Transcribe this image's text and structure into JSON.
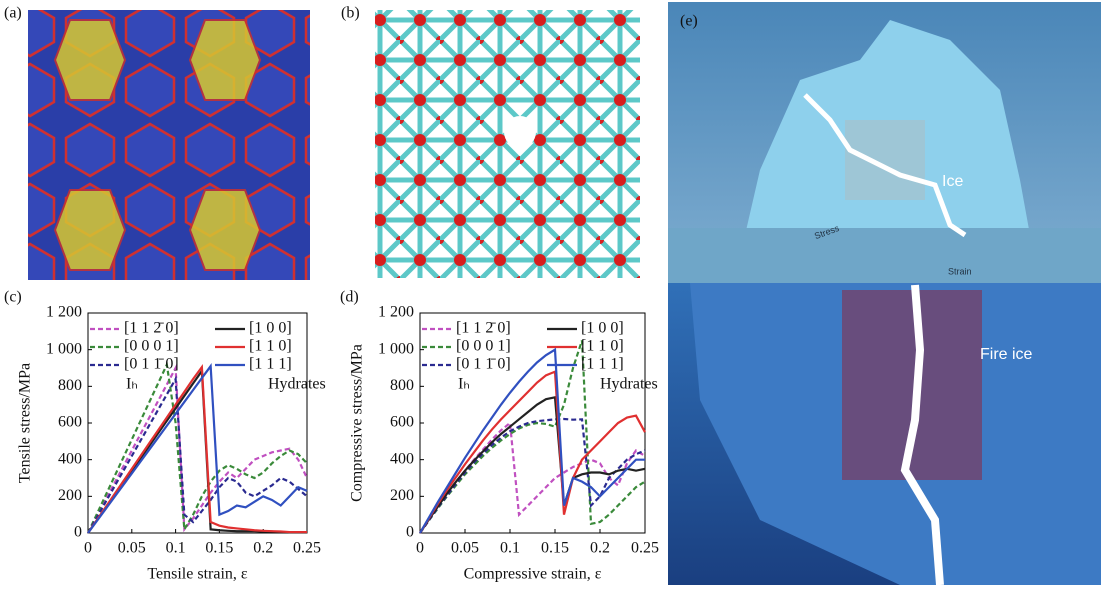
{
  "panels": {
    "a": "(a)",
    "b": "(b)",
    "e": "(e)"
  },
  "illustration": {
    "ice": "Ice",
    "fire_ice": "Fire ice",
    "stress": "Stress",
    "strain": "Strain"
  },
  "chart_data": [
    {
      "type": "line",
      "panel_label": "(c)",
      "ylabel": "Tensile stress/MPa",
      "xlabel": "Tensile strain, ε",
      "annotations": [
        "Iₕ",
        "Hydrates"
      ],
      "xlim": [
        0,
        0.25
      ],
      "xticks": [
        0,
        0.05,
        0.1,
        0.15,
        0.2,
        0.25
      ],
      "ylim": [
        0,
        1200
      ],
      "yticks": [
        0,
        200,
        400,
        600,
        800,
        {
          "value": 1000,
          "label": "1 000"
        },
        {
          "value": 1200,
          "label": "1 200"
        }
      ],
      "x": [
        0,
        0.01,
        0.02,
        0.03,
        0.04,
        0.05,
        0.06,
        0.07,
        0.08,
        0.09,
        0.1,
        0.11,
        0.12,
        0.13,
        0.14,
        0.15,
        0.16,
        0.17,
        0.18,
        0.19,
        0.2,
        0.21,
        0.22,
        0.23,
        0.24,
        0.25
      ],
      "series": [
        {
          "name": "[1 1 2̄ 0]",
          "color": "#c050c0",
          "style": "dashed",
          "values": [
            0,
            90,
            180,
            270,
            360,
            450,
            540,
            630,
            720,
            810,
            900,
            20,
            80,
            150,
            220,
            280,
            330,
            300,
            350,
            400,
            420,
            440,
            450,
            460,
            400,
            300
          ]
        },
        {
          "name": "[0 0 0 1]",
          "color": "#3a8a3a",
          "style": "dashed",
          "values": [
            0,
            102,
            204,
            306,
            408,
            510,
            612,
            714,
            816,
            918,
            600,
            20,
            100,
            200,
            280,
            340,
            370,
            350,
            320,
            300,
            330,
            380,
            420,
            450,
            430,
            380
          ]
        },
        {
          "name": "[0 1 1̄ 0]",
          "color": "#2a2a90",
          "style": "dashed",
          "values": [
            0,
            84,
            168,
            252,
            336,
            420,
            504,
            588,
            672,
            756,
            840,
            100,
            60,
            120,
            180,
            250,
            300,
            280,
            220,
            200,
            230,
            260,
            300,
            280,
            240,
            200
          ]
        },
        {
          "name": "[1 0 0]",
          "color": "#222222",
          "style": "solid",
          "values": [
            0,
            68,
            136,
            204,
            272,
            340,
            408,
            476,
            544,
            612,
            680,
            748,
            816,
            884,
            20,
            15,
            12,
            10,
            10,
            10,
            8,
            8,
            5,
            5,
            5,
            5
          ]
        },
        {
          "name": "[1 1 0]",
          "color": "#e03030",
          "style": "solid",
          "values": [
            0,
            70,
            140,
            210,
            280,
            350,
            420,
            490,
            560,
            630,
            700,
            770,
            840,
            905,
            60,
            40,
            30,
            25,
            20,
            15,
            12,
            10,
            8,
            5,
            5,
            5
          ]
        },
        {
          "name": "[1 1 1]",
          "color": "#3050c0",
          "style": "solid",
          "values": [
            0,
            65,
            130,
            195,
            260,
            325,
            390,
            455,
            520,
            585,
            650,
            715,
            780,
            845,
            910,
            100,
            120,
            150,
            140,
            170,
            200,
            180,
            150,
            200,
            250,
            230
          ]
        }
      ]
    },
    {
      "type": "line",
      "panel_label": "(d)",
      "ylabel": "Compressive stress/MPa",
      "xlabel": "Compressive strain, ε",
      "annotations": [
        "Iₕ",
        "Hydrates"
      ],
      "xlim": [
        0,
        0.25
      ],
      "xticks": [
        0,
        0.05,
        0.1,
        0.15,
        0.2,
        0.25
      ],
      "ylim": [
        0,
        1200
      ],
      "yticks": [
        0,
        200,
        400,
        600,
        800,
        {
          "value": 1000,
          "label": "1 000"
        },
        {
          "value": 1200,
          "label": "1 200"
        }
      ],
      "x": [
        0,
        0.01,
        0.02,
        0.03,
        0.04,
        0.05,
        0.06,
        0.07,
        0.08,
        0.09,
        0.1,
        0.11,
        0.12,
        0.13,
        0.14,
        0.15,
        0.16,
        0.17,
        0.18,
        0.19,
        0.2,
        0.21,
        0.22,
        0.23,
        0.24,
        0.25
      ],
      "series": [
        {
          "name": "[1 1 2̄ 0]",
          "color": "#c050c0",
          "style": "dashed",
          "values": [
            0,
            75,
            145,
            215,
            280,
            340,
            400,
            455,
            510,
            560,
            600,
            100,
            150,
            200,
            250,
            300,
            330,
            360,
            380,
            400,
            380,
            300,
            260,
            380,
            450,
            420
          ]
        },
        {
          "name": "[0 0 0 1]",
          "color": "#3a8a3a",
          "style": "dashed",
          "values": [
            0,
            70,
            135,
            200,
            260,
            320,
            370,
            420,
            465,
            505,
            540,
            570,
            590,
            600,
            595,
            580,
            700,
            900,
            1050,
            50,
            60,
            100,
            150,
            200,
            250,
            280
          ]
        },
        {
          "name": "[0 1 1̄ 0]",
          "color": "#2a2a90",
          "style": "dashed",
          "values": [
            0,
            70,
            140,
            205,
            270,
            330,
            385,
            435,
            480,
            520,
            555,
            580,
            600,
            610,
            615,
            620,
            622,
            618,
            620,
            150,
            200,
            300,
            350,
            400,
            430,
            450
          ]
        },
        {
          "name": "[1 0 0]",
          "color": "#222222",
          "style": "solid",
          "values": [
            0,
            75,
            145,
            215,
            280,
            340,
            395,
            445,
            495,
            540,
            580,
            620,
            660,
            700,
            730,
            740,
            150,
            300,
            320,
            330,
            330,
            320,
            340,
            350,
            340,
            350
          ]
        },
        {
          "name": "[1 1 0]",
          "color": "#e03030",
          "style": "solid",
          "values": [
            0,
            80,
            160,
            235,
            305,
            375,
            440,
            505,
            565,
            620,
            670,
            720,
            770,
            820,
            860,
            880,
            100,
            300,
            400,
            450,
            500,
            550,
            600,
            630,
            640,
            550
          ]
        },
        {
          "name": "[1 1 1]",
          "color": "#3050c0",
          "style": "solid",
          "values": [
            0,
            85,
            170,
            250,
            330,
            410,
            485,
            560,
            630,
            700,
            765,
            825,
            880,
            930,
            970,
            1000,
            150,
            300,
            280,
            250,
            200,
            250,
            300,
            350,
            400,
            400
          ]
        }
      ]
    }
  ]
}
